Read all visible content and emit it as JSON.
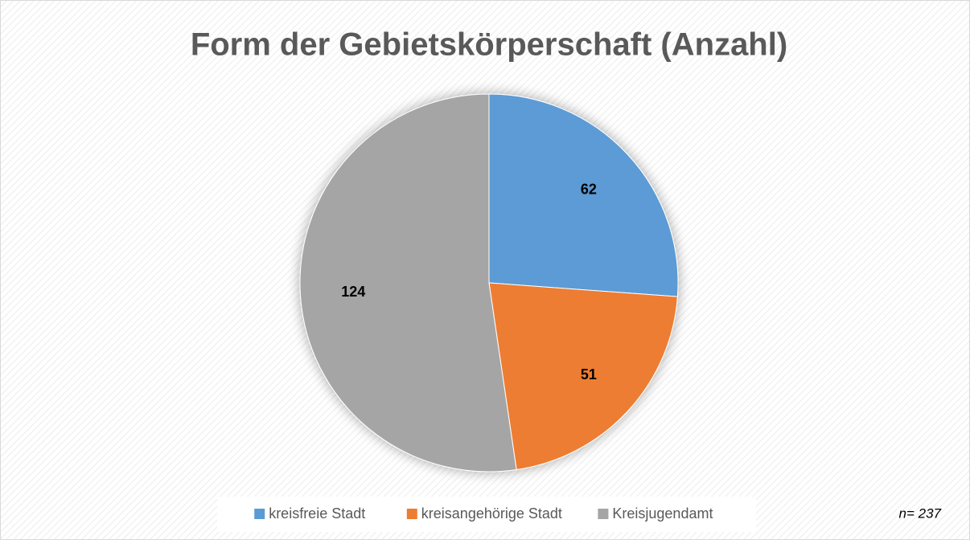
{
  "chart_data": {
    "type": "pie",
    "title": "Form der Gebietskörperschaft (Anzahl)",
    "categories": [
      "kreisfreie Stadt",
      "kreisangehörige Stadt",
      "Kreisjugendamt"
    ],
    "values": [
      62,
      51,
      124
    ],
    "colors": [
      "#5b9bd5",
      "#ed7d31",
      "#a5a5a5"
    ],
    "legend": "bottom",
    "annotation": "n= 237"
  }
}
